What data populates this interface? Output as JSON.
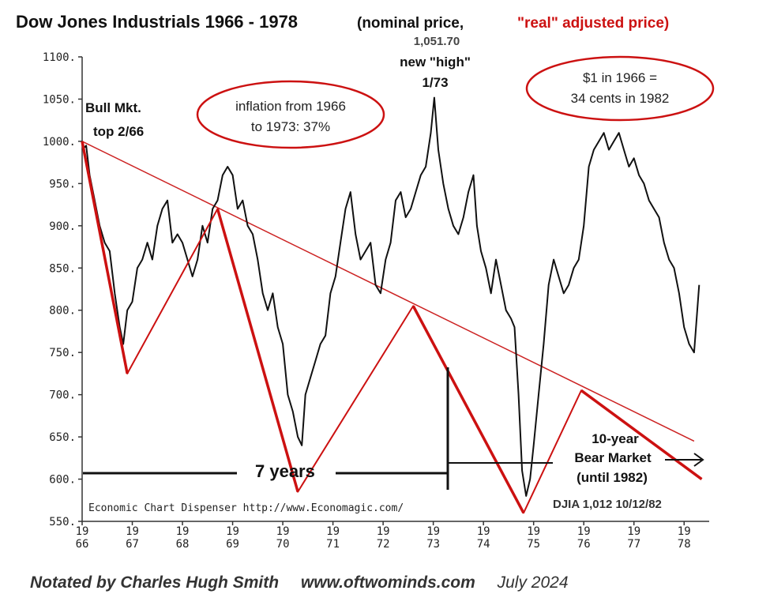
{
  "title": {
    "main": "Dow Jones Industrials 1966 - 1978",
    "paren_open": "(nominal price,",
    "red_part": "\"real\" adjusted price)"
  },
  "annotations": {
    "bull_top_line1": "Bull Mkt.",
    "bull_top_line2": "top 2/66",
    "inflation_line1": "inflation from 1966",
    "inflation_line2": "to 1973: 37%",
    "high_value": "1,051.70",
    "high_line1": "new \"high\"",
    "high_line2": "1/73",
    "dollar_line1": "$1 in 1966 =",
    "dollar_line2": "34 cents in 1982",
    "seven_years": "7 years",
    "bear_line1": "10-year",
    "bear_line2": "Bear Market",
    "bear_line3": "(until 1982)",
    "source": "Economic Chart Dispenser  http://www.Economagic.com/",
    "djia_note": "DJIA 1,012  10/12/82"
  },
  "footer": {
    "author": "Notated by Charles Hugh Smith",
    "site": "www.oftwominds.com",
    "date": "July 2024"
  },
  "colors": {
    "nominal": "#111111",
    "real": "#cc1111",
    "trend": "#cc2222"
  },
  "chart_data": {
    "type": "line",
    "title": "Dow Jones Industrials 1966 - 1978",
    "xlim": [
      1966,
      1978.5
    ],
    "ylim": [
      550,
      1100
    ],
    "y_ticks": [
      550,
      600,
      650,
      700,
      750,
      800,
      850,
      900,
      950,
      1000,
      1050,
      1100
    ],
    "y_tick_labels": [
      "550.",
      "600.",
      "650.",
      "700.",
      "750.",
      "800.",
      "850.",
      "900.",
      "950.",
      "1000.",
      "1050.",
      "1100."
    ],
    "x_ticks": [
      1966,
      1967,
      1968,
      1969,
      1970,
      1971,
      1972,
      1973,
      1974,
      1975,
      1976,
      1977,
      1978
    ],
    "x_tick_labels": [
      [
        "19",
        "66"
      ],
      [
        "19",
        "67"
      ],
      [
        "19",
        "68"
      ],
      [
        "19",
        "69"
      ],
      [
        "19",
        "70"
      ],
      [
        "19",
        "71"
      ],
      [
        "19",
        "72"
      ],
      [
        "19",
        "73"
      ],
      [
        "19",
        "74"
      ],
      [
        "19",
        "75"
      ],
      [
        "19",
        "76"
      ],
      [
        "19",
        "77"
      ],
      [
        "19",
        "78"
      ]
    ],
    "grid": false,
    "series": [
      {
        "role": "nominal",
        "color": "#111111",
        "x": [
          1966.0,
          1966.08,
          1966.15,
          1966.25,
          1966.35,
          1966.45,
          1966.55,
          1966.65,
          1966.75,
          1966.82,
          1966.9,
          1967.0,
          1967.1,
          1967.2,
          1967.3,
          1967.4,
          1967.5,
          1967.6,
          1967.7,
          1967.8,
          1967.9,
          1968.0,
          1968.1,
          1968.2,
          1968.3,
          1968.4,
          1968.5,
          1968.6,
          1968.7,
          1968.8,
          1968.9,
          1969.0,
          1969.1,
          1969.2,
          1969.3,
          1969.4,
          1969.5,
          1969.6,
          1969.7,
          1969.8,
          1969.9,
          1970.0,
          1970.1,
          1970.2,
          1970.3,
          1970.38,
          1970.45,
          1970.55,
          1970.65,
          1970.75,
          1970.85,
          1970.95,
          1971.05,
          1971.15,
          1971.25,
          1971.35,
          1971.45,
          1971.55,
          1971.65,
          1971.75,
          1971.85,
          1971.95,
          1972.05,
          1972.15,
          1972.25,
          1972.35,
          1972.45,
          1972.55,
          1972.65,
          1972.75,
          1972.85,
          1972.95,
          1973.02,
          1973.1,
          1973.2,
          1973.3,
          1973.4,
          1973.5,
          1973.6,
          1973.7,
          1973.8,
          1973.87,
          1973.95,
          1974.05,
          1974.15,
          1974.25,
          1974.35,
          1974.45,
          1974.55,
          1974.62,
          1974.7,
          1974.77,
          1974.85,
          1974.93,
          1975.0,
          1975.1,
          1975.2,
          1975.3,
          1975.4,
          1975.5,
          1975.6,
          1975.7,
          1975.8,
          1975.9,
          1976.0,
          1976.1,
          1976.2,
          1976.3,
          1976.4,
          1976.5,
          1976.6,
          1976.7,
          1976.8,
          1976.9,
          1977.0,
          1977.1,
          1977.2,
          1977.3,
          1977.4,
          1977.5,
          1977.6,
          1977.7,
          1977.8,
          1977.9,
          1978.0,
          1978.1,
          1978.2,
          1978.3
        ],
        "y": [
          990,
          995,
          960,
          930,
          900,
          880,
          870,
          820,
          780,
          760,
          800,
          810,
          850,
          860,
          880,
          860,
          900,
          920,
          930,
          880,
          890,
          880,
          860,
          840,
          860,
          900,
          880,
          920,
          930,
          960,
          970,
          960,
          920,
          930,
          900,
          890,
          860,
          820,
          800,
          820,
          780,
          760,
          700,
          680,
          650,
          640,
          700,
          720,
          740,
          760,
          770,
          820,
          840,
          880,
          920,
          940,
          890,
          860,
          870,
          880,
          830,
          820,
          860,
          880,
          930,
          940,
          910,
          920,
          940,
          960,
          970,
          1010,
          1051.7,
          990,
          950,
          920,
          900,
          890,
          910,
          940,
          960,
          900,
          870,
          850,
          820,
          860,
          830,
          800,
          790,
          780,
          700,
          610,
          580,
          600,
          640,
          700,
          760,
          830,
          860,
          840,
          820,
          830,
          850,
          860,
          900,
          970,
          990,
          1000,
          1010,
          990,
          1000,
          1010,
          990,
          970,
          980,
          960,
          950,
          930,
          920,
          910,
          880,
          860,
          850,
          820,
          780,
          760,
          750,
          830
        ]
      },
      {
        "role": "real",
        "color": "#cc1111",
        "x": [
          1966.0,
          1966.9,
          1968.7,
          1970.3,
          1972.6,
          1974.8,
          1975.95,
          1978.35
        ],
        "y": [
          1000,
          725,
          920,
          585,
          805,
          560,
          705,
          600
        ]
      },
      {
        "role": "trendline",
        "color": "#cc2222",
        "x": [
          1966.0,
          1978.2
        ],
        "y": [
          1000,
          645
        ]
      }
    ]
  }
}
